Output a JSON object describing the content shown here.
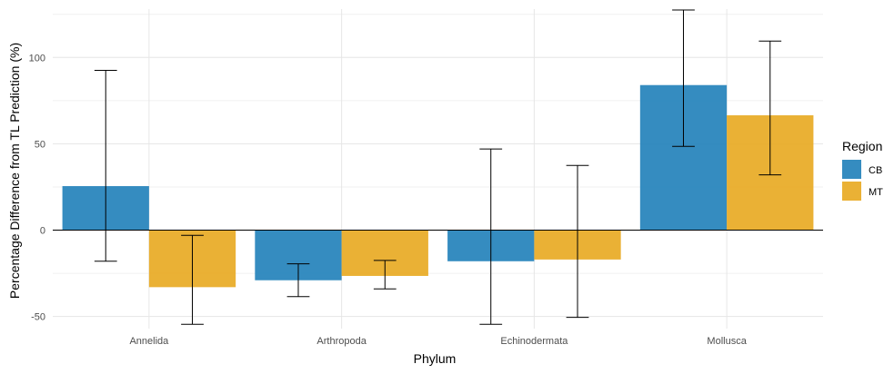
{
  "chart_data": {
    "type": "bar",
    "xlabel": "Phylum",
    "ylabel": "Percentage Difference from TL Prediction (%)",
    "categories": [
      "Annelida",
      "Arthropoda",
      "Echinodermata",
      "Mollusca"
    ],
    "ylim": [
      -57,
      128
    ],
    "yticks": [
      -50,
      0,
      50,
      100
    ],
    "grid": true,
    "legend": {
      "title": "Region",
      "position": "right"
    },
    "series": [
      {
        "name": "CB",
        "color": "#1f7fb9",
        "values": [
          25.5,
          -29,
          -18,
          84
        ],
        "error_low": [
          -18,
          -38.5,
          -54.5,
          48.5
        ],
        "error_high": [
          92.5,
          -19.5,
          47,
          127.5
        ]
      },
      {
        "name": "MT",
        "color": "#e8a91f",
        "values": [
          -33,
          -26.5,
          -17,
          66.5
        ],
        "error_low": [
          -54.5,
          -34,
          -50.5,
          32
        ],
        "error_high": [
          -3,
          -17.5,
          37.5,
          109.5
        ]
      }
    ]
  }
}
